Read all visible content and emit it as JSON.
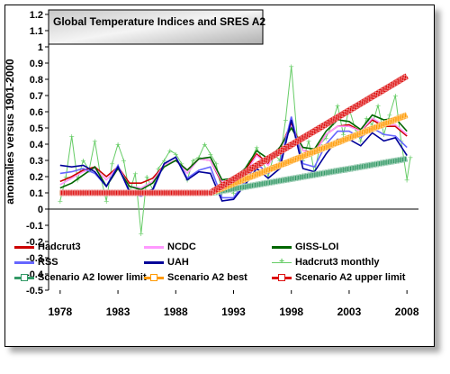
{
  "chart_data": {
    "type": "line",
    "title": "Global Temperature Indices and SRES A2",
    "xlabel": "",
    "ylabel": "anomalies versus 1901-2000",
    "xlim": [
      1977,
      2009
    ],
    "ylim": [
      -0.5,
      1.2
    ],
    "x_ticks": [
      1978,
      1983,
      1988,
      1993,
      1998,
      2003,
      2008
    ],
    "y_ticks": [
      -0.5,
      -0.4,
      -0.3,
      -0.2,
      -0.1,
      0,
      0.1,
      0.2,
      0.3,
      0.4,
      0.5,
      0.6,
      0.7,
      0.8,
      0.9,
      1,
      1.1,
      1.2
    ],
    "legend_position": "bottom",
    "series": [
      {
        "name": "Hadcrut3",
        "color": "#cc0000",
        "style": "line",
        "x": [
          1978,
          1979,
          1980,
          1981,
          1982,
          1983,
          1984,
          1985,
          1986,
          1987,
          1988,
          1989,
          1990,
          1991,
          1992,
          1993,
          1994,
          1995,
          1996,
          1997,
          1998,
          1999,
          2000,
          2001,
          2002,
          2003,
          2004,
          2005,
          2006,
          2007,
          2008
        ],
        "y": [
          0.17,
          0.2,
          0.24,
          0.26,
          0.2,
          0.26,
          0.16,
          0.16,
          0.19,
          0.27,
          0.3,
          0.24,
          0.31,
          0.3,
          0.16,
          0.19,
          0.24,
          0.34,
          0.28,
          0.37,
          0.53,
          0.36,
          0.35,
          0.46,
          0.51,
          0.52,
          0.48,
          0.55,
          0.51,
          0.51,
          0.45
        ]
      },
      {
        "name": "NCDC",
        "color": "#ff99ff",
        "style": "line",
        "x": [
          1978,
          1979,
          1980,
          1981,
          1982,
          1983,
          1984,
          1985,
          1986,
          1987,
          1988,
          1989,
          1990,
          1991,
          1992,
          1993,
          1994,
          1995,
          1996,
          1997,
          1998,
          1999,
          2000,
          2001,
          2002,
          2003,
          2004,
          2005,
          2006,
          2007,
          2008
        ],
        "y": [
          0.15,
          0.19,
          0.23,
          0.25,
          0.18,
          0.26,
          0.14,
          0.13,
          0.17,
          0.27,
          0.3,
          0.22,
          0.31,
          0.3,
          0.17,
          0.18,
          0.22,
          0.33,
          0.27,
          0.38,
          0.51,
          0.36,
          0.34,
          0.46,
          0.51,
          0.51,
          0.48,
          0.56,
          0.52,
          0.52,
          0.46
        ]
      },
      {
        "name": "GISS-LOI",
        "color": "#006600",
        "style": "line",
        "x": [
          1978,
          1979,
          1980,
          1981,
          1982,
          1983,
          1984,
          1985,
          1986,
          1987,
          1988,
          1989,
          1990,
          1991,
          1992,
          1993,
          1994,
          1995,
          1996,
          1997,
          1998,
          1999,
          2000,
          2001,
          2002,
          2003,
          2004,
          2005,
          2006,
          2007,
          2008
        ],
        "y": [
          0.13,
          0.16,
          0.21,
          0.26,
          0.14,
          0.25,
          0.14,
          0.12,
          0.16,
          0.26,
          0.3,
          0.24,
          0.31,
          0.32,
          0.18,
          0.19,
          0.25,
          0.36,
          0.31,
          0.38,
          0.5,
          0.38,
          0.37,
          0.48,
          0.55,
          0.54,
          0.49,
          0.58,
          0.55,
          0.56,
          0.48
        ]
      },
      {
        "name": "RSS",
        "color": "#6666ff",
        "style": "line",
        "x": [
          1978,
          1979,
          1980,
          1981,
          1982,
          1983,
          1984,
          1985,
          1986,
          1987,
          1988,
          1989,
          1990,
          1991,
          1992,
          1993,
          1994,
          1995,
          1996,
          1997,
          1998,
          1999,
          2000,
          2001,
          2002,
          2003,
          2004,
          2005,
          2006,
          2007,
          2008
        ],
        "y": [
          0.22,
          0.23,
          0.25,
          0.22,
          0.14,
          0.27,
          0.1,
          0.08,
          0.11,
          0.28,
          0.32,
          0.19,
          0.24,
          0.26,
          0.07,
          0.07,
          0.17,
          0.28,
          0.22,
          0.28,
          0.57,
          0.28,
          0.26,
          0.4,
          0.48,
          0.48,
          0.44,
          0.5,
          0.46,
          0.45,
          0.38
        ]
      },
      {
        "name": "UAH",
        "color": "#000099",
        "style": "line",
        "x": [
          1978,
          1979,
          1980,
          1981,
          1982,
          1983,
          1984,
          1985,
          1986,
          1987,
          1988,
          1989,
          1990,
          1991,
          1992,
          1993,
          1994,
          1995,
          1996,
          1997,
          1998,
          1999,
          2000,
          2001,
          2002,
          2003,
          2004,
          2005,
          2006,
          2007,
          2008
        ],
        "y": [
          0.27,
          0.26,
          0.27,
          0.23,
          0.14,
          0.26,
          0.11,
          0.1,
          0.12,
          0.28,
          0.32,
          0.18,
          0.23,
          0.22,
          0.05,
          0.06,
          0.15,
          0.25,
          0.19,
          0.25,
          0.55,
          0.25,
          0.23,
          0.34,
          0.43,
          0.43,
          0.39,
          0.47,
          0.42,
          0.44,
          0.33
        ]
      },
      {
        "name": "Hadcrut3 monthly",
        "color": "#66cc66",
        "style": "monthly",
        "x": [
          1978.0,
          1978.5,
          1979.0,
          1979.5,
          1980.0,
          1980.5,
          1981.0,
          1981.5,
          1982.0,
          1982.5,
          1983.0,
          1983.5,
          1984.0,
          1984.5,
          1985.0,
          1985.5,
          1986.0,
          1986.5,
          1987.0,
          1987.5,
          1988.0,
          1988.5,
          1989.0,
          1989.5,
          1990.0,
          1990.5,
          1991.0,
          1991.5,
          1992.0,
          1992.5,
          1993.0,
          1993.5,
          1994.0,
          1994.5,
          1995.0,
          1995.5,
          1996.0,
          1996.5,
          1997.0,
          1997.5,
          1998.0,
          1998.5,
          1999.0,
          1999.5,
          2000.0,
          2000.5,
          2001.0,
          2001.5,
          2002.0,
          2002.5,
          2003.0,
          2003.5,
          2004.0,
          2004.5,
          2005.0,
          2005.5,
          2006.0,
          2006.5,
          2007.0,
          2007.5,
          2008.0,
          2008.3
        ],
        "y": [
          0.05,
          0.2,
          0.45,
          0.18,
          0.3,
          0.24,
          0.42,
          0.2,
          0.05,
          0.28,
          0.4,
          0.3,
          0.1,
          0.22,
          -0.15,
          0.2,
          0.12,
          0.25,
          0.3,
          0.36,
          0.34,
          0.28,
          0.18,
          0.3,
          0.32,
          0.4,
          0.34,
          0.28,
          0.1,
          0.14,
          0.1,
          0.22,
          0.2,
          0.3,
          0.38,
          0.3,
          0.2,
          0.34,
          0.3,
          0.55,
          0.88,
          0.45,
          0.3,
          0.42,
          0.22,
          0.4,
          0.44,
          0.52,
          0.64,
          0.46,
          0.62,
          0.5,
          0.42,
          0.56,
          0.52,
          0.64,
          0.46,
          0.58,
          0.7,
          0.42,
          0.18,
          0.32
        ]
      },
      {
        "name": "Scenario A2 lower limit",
        "color": "#339966",
        "style": "scenario",
        "x": [
          1978,
          1991,
          2008
        ],
        "y": [
          0.1,
          0.1,
          0.31
        ]
      },
      {
        "name": "Scenario A2 best",
        "color": "#ff9900",
        "style": "scenario",
        "x": [
          1978,
          1991,
          2008
        ],
        "y": [
          0.1,
          0.1,
          0.58
        ]
      },
      {
        "name": "Scenario A2 upper limit",
        "color": "#dd1111",
        "style": "scenario",
        "x": [
          1978,
          1991,
          2008
        ],
        "y": [
          0.1,
          0.1,
          0.82
        ]
      }
    ]
  }
}
